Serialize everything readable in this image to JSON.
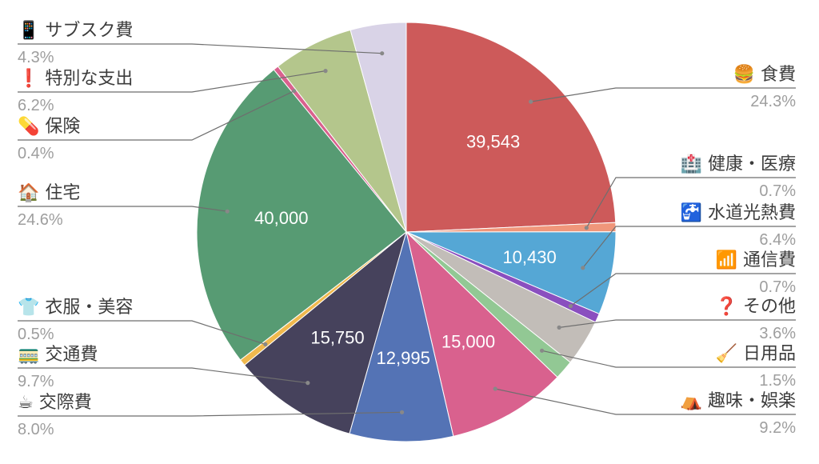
{
  "chart_data": {
    "type": "pie",
    "start_category_index": 0,
    "categories": [
      {
        "icon": "hamburger-icon",
        "glyph": "🍔",
        "label": "食費",
        "percent": "24.3%",
        "value": 39543,
        "value_label": "39,543",
        "color": "#cd5a5a"
      },
      {
        "icon": "hospital-icon",
        "glyph": "🏥",
        "label": "健康・医療",
        "percent": "0.7%",
        "value": 1140,
        "value_label": "",
        "color": "#f0967a"
      },
      {
        "icon": "faucet-icon",
        "glyph": "🚰",
        "label": "水道光熱費",
        "percent": "6.4%",
        "value": 10430,
        "value_label": "10,430",
        "color": "#55a7d5"
      },
      {
        "icon": "wifi-icon",
        "glyph": "📶",
        "label": "通信費",
        "percent": "0.7%",
        "value": 1140,
        "value_label": "",
        "color": "#8a4fbf"
      },
      {
        "icon": "question-icon",
        "glyph": "❓",
        "label": "その他",
        "percent": "3.6%",
        "value": 5860,
        "value_label": "",
        "color": "#c2bdb8"
      },
      {
        "icon": "broom-icon",
        "glyph": "🧹",
        "label": "日用品",
        "percent": "1.5%",
        "value": 2440,
        "value_label": "",
        "color": "#92c894"
      },
      {
        "icon": "tent-icon",
        "glyph": "⛺",
        "label": "趣味・娯楽",
        "percent": "9.2%",
        "value": 15000,
        "value_label": "15,000",
        "color": "#d9618e"
      },
      {
        "icon": "coffee-icon",
        "glyph": "☕",
        "label": "交際費",
        "percent": "8.0%",
        "value": 12995,
        "value_label": "12,995",
        "color": "#5473b5"
      },
      {
        "icon": "train-icon",
        "glyph": "🚃",
        "label": "交通費",
        "percent": "9.7%",
        "value": 15750,
        "value_label": "15,750",
        "color": "#46425c"
      },
      {
        "icon": "shirt-icon",
        "glyph": "👕",
        "label": "衣服・美容",
        "percent": "0.5%",
        "value": 810,
        "value_label": "",
        "color": "#f0b94e"
      },
      {
        "icon": "house-icon",
        "glyph": "🏠",
        "label": "住宅",
        "percent": "24.6%",
        "value": 40000,
        "value_label": "40,000",
        "color": "#579b73"
      },
      {
        "icon": "pill-icon",
        "glyph": "💊",
        "label": "保険",
        "percent": "0.4%",
        "value": 650,
        "value_label": "",
        "color": "#d9618e"
      },
      {
        "icon": "exclamation-icon",
        "glyph": "❗",
        "label": "特別な支出",
        "percent": "6.2%",
        "value": 10090,
        "value_label": "",
        "color": "#b4c68c"
      },
      {
        "icon": "phone-icon",
        "glyph": "📱",
        "label": "サブスク費",
        "percent": "4.3%",
        "value": 7000,
        "value_label": "",
        "color": "#d9d3e7"
      }
    ]
  }
}
